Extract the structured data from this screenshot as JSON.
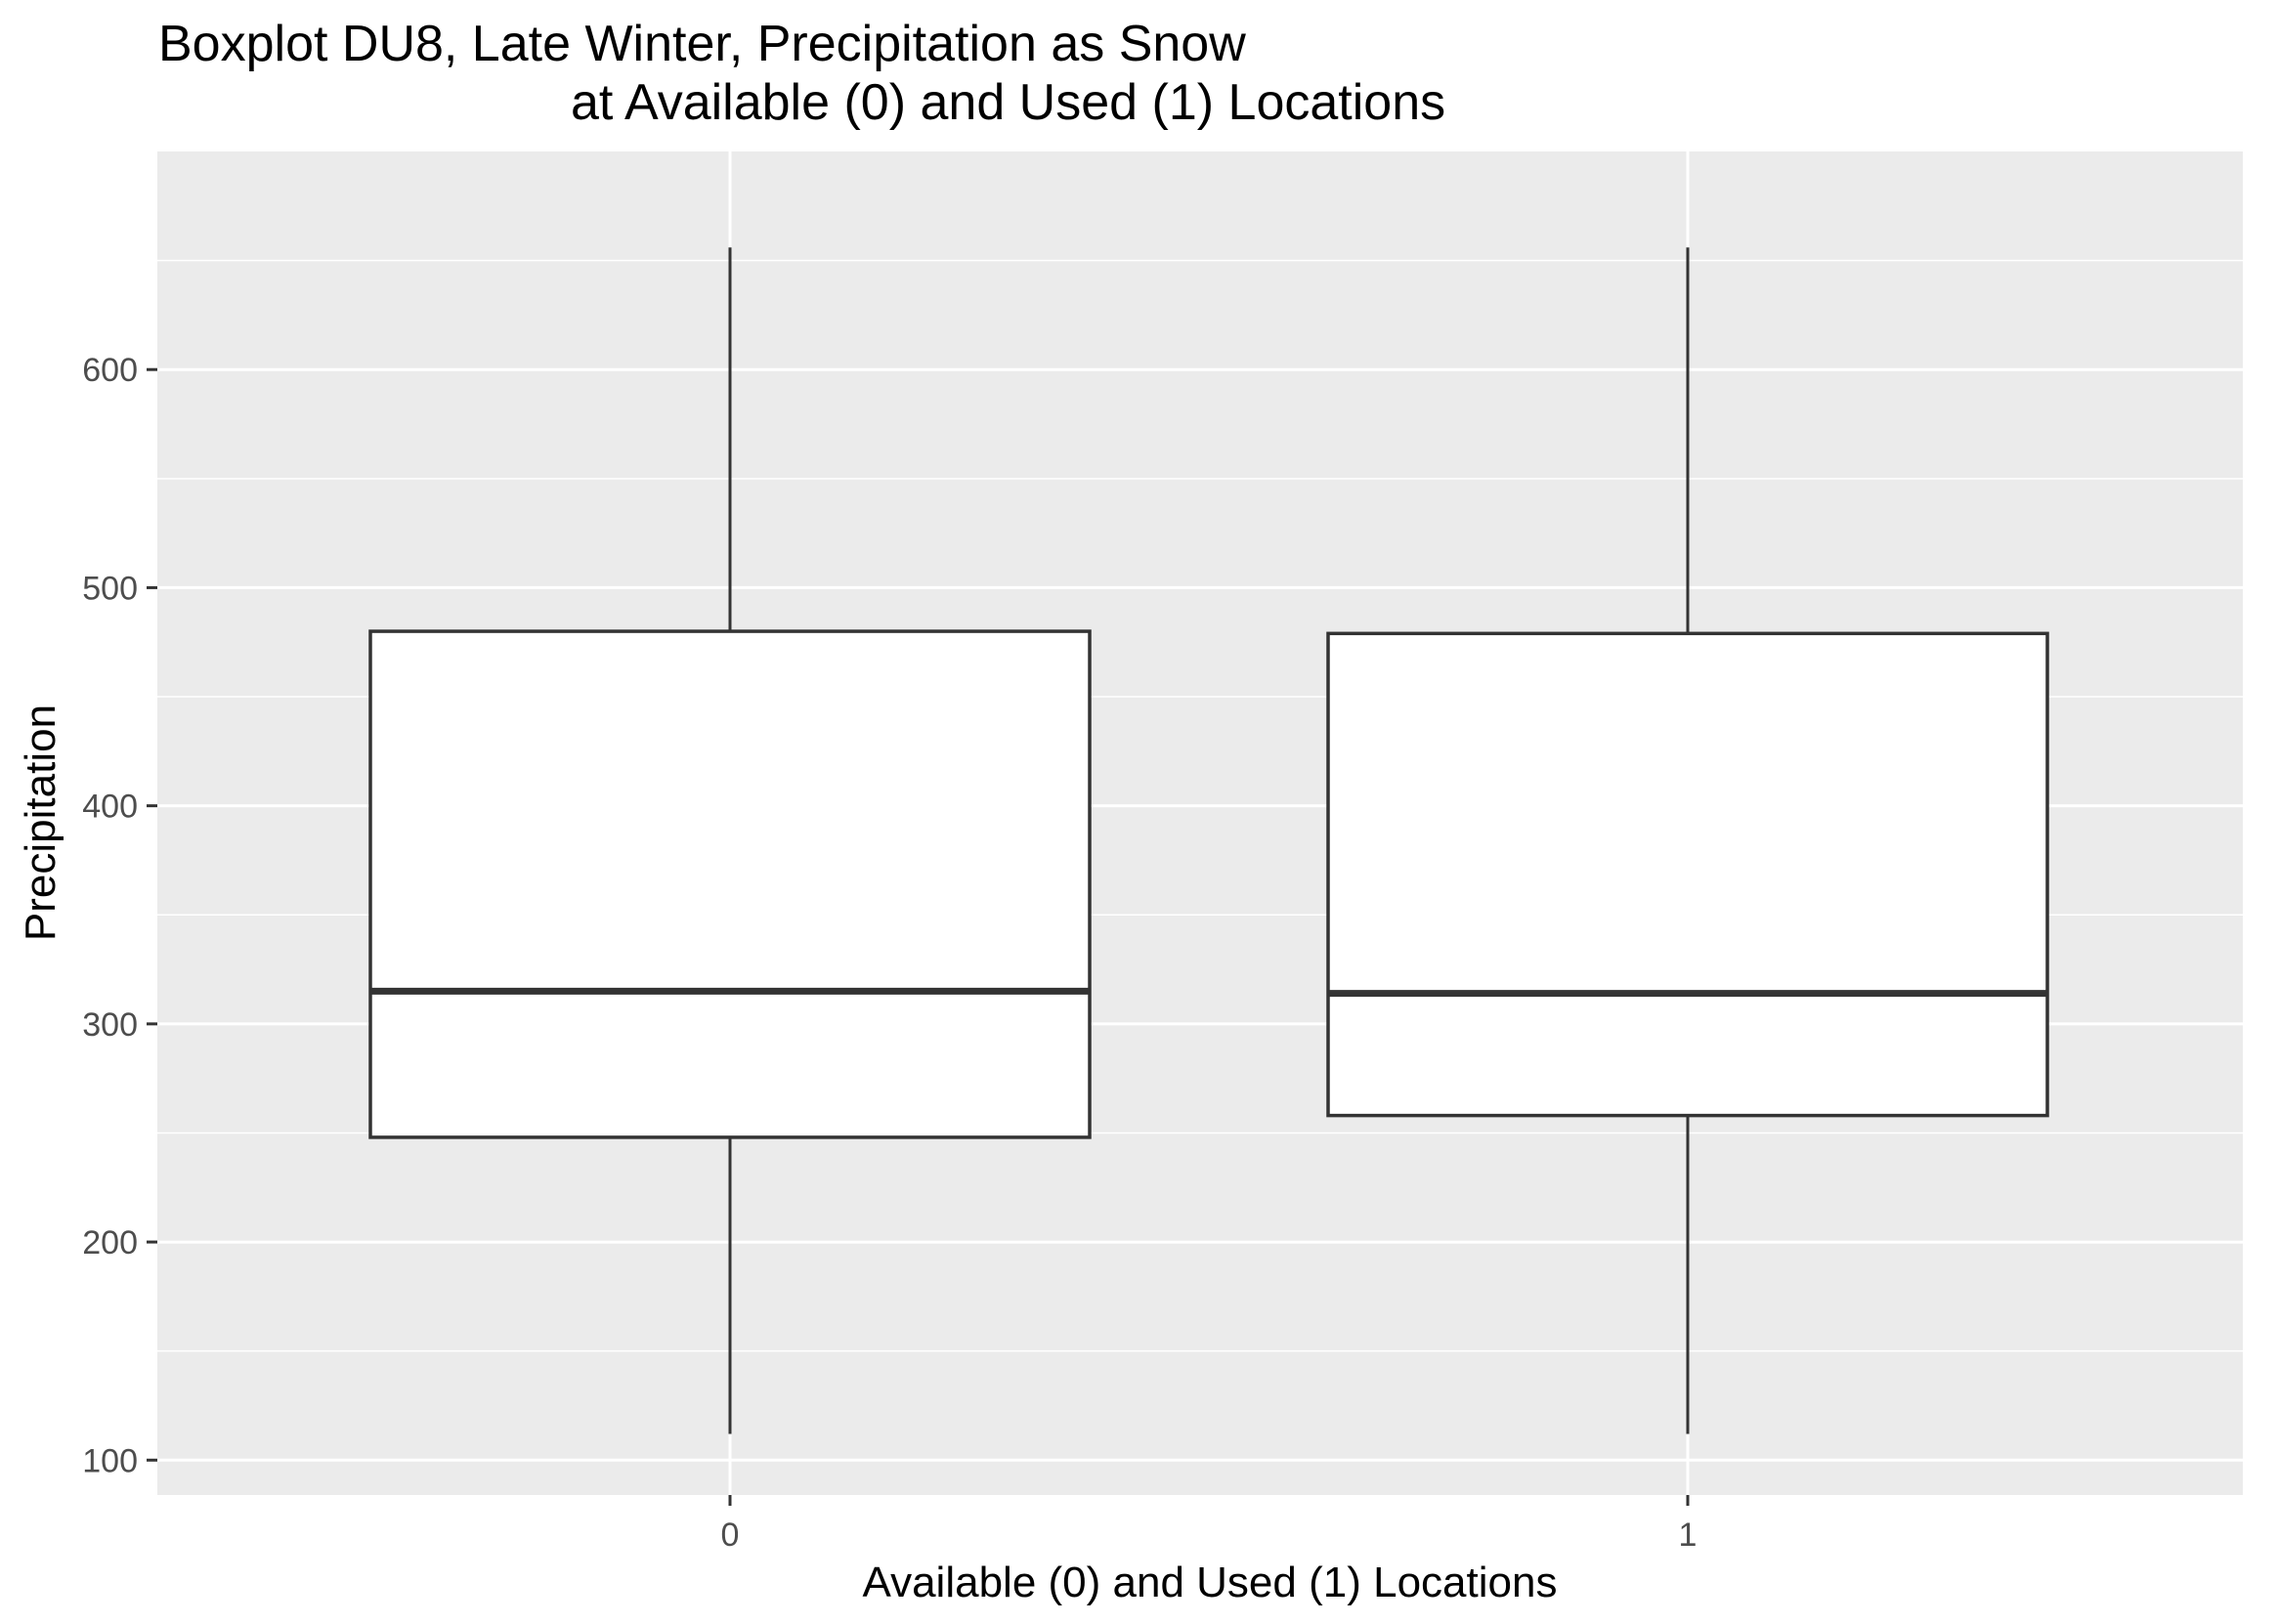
{
  "chart_data": {
    "type": "boxplot",
    "title": [
      "Boxplot DU8, Late Winter, Precipitation as Snow",
      "at Available (0) and Used (1) Locations"
    ],
    "xlabel": "Available (0) and Used (1) Locations",
    "ylabel": "Precipitation",
    "categories": [
      "0",
      "1"
    ],
    "boxes": [
      {
        "category": "0",
        "whisker_low": 112,
        "q1": 248,
        "median": 315,
        "q3": 480,
        "whisker_high": 656
      },
      {
        "category": "1",
        "whisker_low": 112,
        "q1": 258,
        "median": 314,
        "q3": 479,
        "whisker_high": 656
      }
    ],
    "ylim": [
      84,
      700
    ],
    "yticks": [
      100,
      200,
      300,
      400,
      500,
      600
    ],
    "ytick_labels": [
      "100",
      "200",
      "300",
      "400",
      "500",
      "600"
    ],
    "grid": true,
    "colors": {
      "panel_background": "#ebebeb",
      "grid_line": "#ffffff",
      "box_fill": "#ffffff",
      "box_stroke": "#333333",
      "tick_mark": "#333333"
    }
  }
}
